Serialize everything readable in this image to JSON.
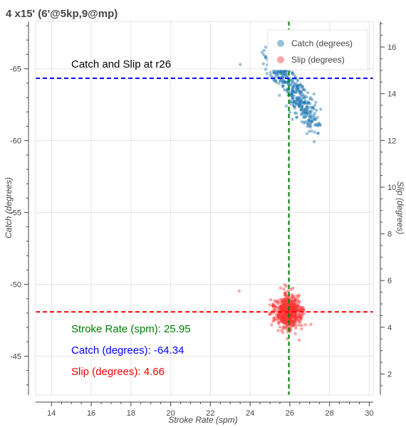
{
  "chart_data": {
    "type": "scatter",
    "title": "4 x15' (6'@5kp,9@mp)",
    "subtitle": "Catch and Slip at r26",
    "xlabel": "Stroke Rate (spm)",
    "ylabel_left": "Catch (degrees)",
    "ylabel_right": "Slip (degrees)",
    "xlim": [
      13.2,
      30.2
    ],
    "ylim_left": [
      -42.3,
      -68.3
    ],
    "ylim_right": [
      1.1,
      17.1
    ],
    "x_ticks": [
      "14",
      "16",
      "18",
      "20",
      "22",
      "24",
      "26",
      "28",
      "30"
    ],
    "y_left_ticks": [
      "-65",
      "-60",
      "-55",
      "-50",
      "-45"
    ],
    "y_right_ticks": [
      "2",
      "4",
      "6",
      "8",
      "10",
      "12",
      "14",
      "16"
    ],
    "grid": true,
    "legend_position": "top-right",
    "series": [
      {
        "name": "Catch (degrees)",
        "axis": "left",
        "color": "#1f77b4",
        "x_range": [
          24.4,
          28.2
        ],
        "y_range": [
          -67.5,
          -59.0
        ],
        "center": [
          25.9,
          -64.3
        ],
        "n_points": 420
      },
      {
        "name": "Slip (degrees)",
        "axis": "right",
        "color": "#ff3333",
        "x_range": [
          24.3,
          27.9
        ],
        "y_range": [
          2.8,
          6.9
        ],
        "center": [
          25.95,
          4.66
        ],
        "n_points": 520
      }
    ],
    "reference_lines": [
      {
        "orientation": "vertical",
        "axis": "x",
        "value": 25.95,
        "color": "#008000"
      },
      {
        "orientation": "horizontal",
        "axis": "left",
        "value": -64.34,
        "color": "#0000ff"
      },
      {
        "orientation": "horizontal",
        "axis": "right",
        "value": 4.66,
        "color": "#ff0000"
      }
    ],
    "annotations": [
      {
        "text": "Stroke Rate (spm): 25.95",
        "color": "#008000"
      },
      {
        "text": "Catch (degrees): -64.34",
        "color": "#0000ff"
      },
      {
        "text": "Slip (degrees): 4.66",
        "color": "#ff0000"
      }
    ]
  }
}
